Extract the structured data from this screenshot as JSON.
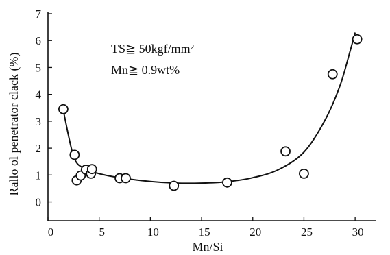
{
  "chart_data": {
    "type": "scatter",
    "title": "",
    "xlabel": "Mn/Si",
    "ylabel": "Rallo ol penetrator clack (%)",
    "xlim": [
      0,
      32
    ],
    "ylim": [
      -0.7,
      7
    ],
    "xticks": [
      0,
      5,
      10,
      15,
      20,
      25,
      30
    ],
    "yticks": [
      0,
      1,
      2,
      3,
      4,
      5,
      6,
      7
    ],
    "xtick_labels": [
      "0",
      "5",
      "10",
      "15",
      "20",
      "25",
      "30"
    ],
    "ytick_labels": [
      "0",
      "1",
      "2",
      "3",
      "4",
      "5",
      "6",
      "7"
    ],
    "grid": false,
    "annotations": [
      {
        "text": "TS≧ 50kgf/mm²"
      },
      {
        "text": "Mn≧ 0.9wt%"
      }
    ],
    "series": [
      {
        "kind": "points",
        "x": [
          1.5,
          2.6,
          2.8,
          3.2,
          3.7,
          4.2,
          4.3,
          7.0,
          7.6,
          12.3,
          17.5,
          23.2,
          25.0,
          27.8,
          30.2
        ],
        "y": [
          3.45,
          1.75,
          0.8,
          0.98,
          1.2,
          1.05,
          1.22,
          0.88,
          0.88,
          0.6,
          0.72,
          1.88,
          1.05,
          4.75,
          6.05
        ]
      },
      {
        "kind": "trend-curve",
        "x": [
          1.5,
          2.5,
          3.5,
          5.0,
          7.0,
          10.0,
          12.5,
          15.0,
          17.5,
          20.0,
          22.5,
          25.0,
          27.0,
          28.5,
          29.5,
          30.0
        ],
        "y": [
          3.4,
          1.7,
          1.25,
          1.05,
          0.9,
          0.76,
          0.7,
          0.7,
          0.75,
          0.9,
          1.2,
          1.85,
          3.0,
          4.3,
          5.6,
          6.3
        ]
      }
    ]
  }
}
